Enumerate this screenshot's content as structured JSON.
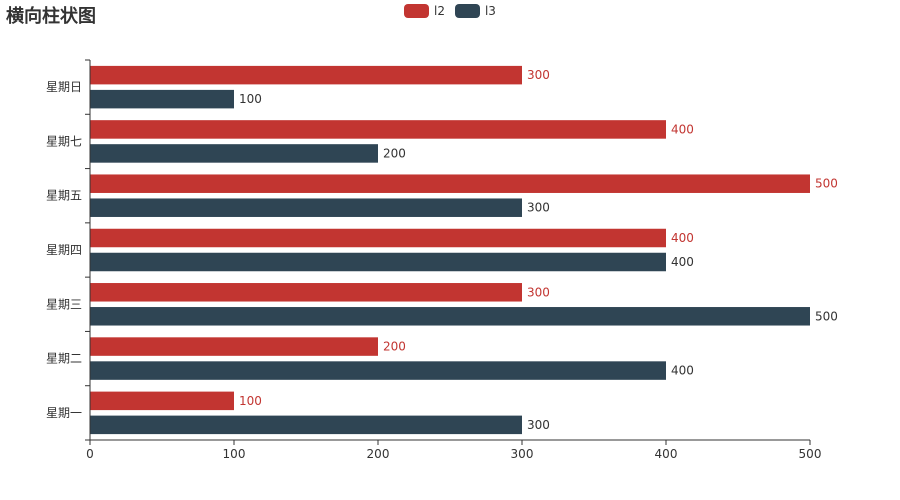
{
  "chart_data": {
    "type": "bar",
    "orientation": "horizontal",
    "title": "横向柱状图",
    "categories": [
      "星期一",
      "星期二",
      "星期三",
      "星期四",
      "星期五",
      "星期七",
      "星期日"
    ],
    "series": [
      {
        "name": "l2",
        "color": "#c23531",
        "values": [
          100,
          200,
          300,
          400,
          500,
          400,
          300
        ]
      },
      {
        "name": "l3",
        "color": "#2f4554",
        "values": [
          300,
          400,
          500,
          400,
          300,
          200,
          100
        ]
      }
    ],
    "x_ticks": [
      0,
      100,
      200,
      300,
      400,
      500
    ],
    "xlim": [
      0,
      500
    ],
    "grid": false,
    "legend_position": "top-center",
    "data_labels": true
  },
  "colors": {
    "axis": "#333333",
    "label_dark": "#333333"
  }
}
